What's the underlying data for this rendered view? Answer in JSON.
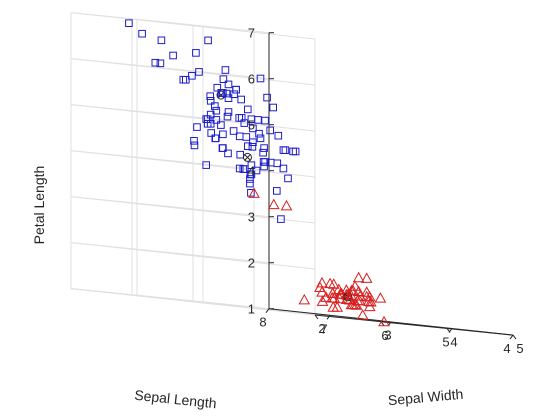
{
  "chart_data": {
    "type": "scatter3d",
    "xlabel": "Sepal Length",
    "ylabel": "Sepal Width",
    "zlabel": "Petal Length",
    "xlim": [
      4,
      8
    ],
    "ylim": [
      2,
      5
    ],
    "zlim": [
      1,
      7
    ],
    "xticks": [
      "4",
      "5",
      "6",
      "7",
      "8"
    ],
    "yticks": [
      "2",
      "3",
      "4",
      "5"
    ],
    "zticks": [
      "1",
      "2",
      "3",
      "4",
      "5",
      "6",
      "7"
    ],
    "grid": true,
    "colors": {
      "setosa": "#d81e1e",
      "versicolor_virginica": "#1e1ec8",
      "markers": "#262626",
      "grid": "#e0e0e0",
      "axis": "#262626"
    },
    "series": [
      {
        "marker": "triangle",
        "color": "#d81e1e",
        "points": [
          [
            5.1,
            3.5,
            1.4
          ],
          [
            4.9,
            3.0,
            1.4
          ],
          [
            4.7,
            3.2,
            1.3
          ],
          [
            4.6,
            3.1,
            1.5
          ],
          [
            5.0,
            3.6,
            1.4
          ],
          [
            5.4,
            3.9,
            1.7
          ],
          [
            4.6,
            3.4,
            1.4
          ],
          [
            5.0,
            3.4,
            1.5
          ],
          [
            4.4,
            2.9,
            1.4
          ],
          [
            4.9,
            3.1,
            1.5
          ],
          [
            5.4,
            3.7,
            1.5
          ],
          [
            4.8,
            3.4,
            1.6
          ],
          [
            4.8,
            3.0,
            1.4
          ],
          [
            4.3,
            3.0,
            1.1
          ],
          [
            5.8,
            4.0,
            1.2
          ],
          [
            5.7,
            4.4,
            1.5
          ],
          [
            5.4,
            3.9,
            1.3
          ],
          [
            5.1,
            3.5,
            1.4
          ],
          [
            5.7,
            3.8,
            1.7
          ],
          [
            5.1,
            3.8,
            1.5
          ],
          [
            5.4,
            3.4,
            1.7
          ],
          [
            5.1,
            3.7,
            1.5
          ],
          [
            4.6,
            3.6,
            1.0
          ],
          [
            5.1,
            3.3,
            1.7
          ],
          [
            4.8,
            3.4,
            1.9
          ],
          [
            5.0,
            3.0,
            1.6
          ],
          [
            5.0,
            3.4,
            1.6
          ],
          [
            5.2,
            3.5,
            1.5
          ],
          [
            5.2,
            3.4,
            1.4
          ],
          [
            4.7,
            3.2,
            1.6
          ],
          [
            4.8,
            3.1,
            1.6
          ],
          [
            5.4,
            3.4,
            1.5
          ],
          [
            5.2,
            4.1,
            1.5
          ],
          [
            5.5,
            4.2,
            1.4
          ],
          [
            4.9,
            3.1,
            1.5
          ],
          [
            5.0,
            3.2,
            1.2
          ],
          [
            5.5,
            3.5,
            1.3
          ],
          [
            4.4,
            3.0,
            1.3
          ],
          [
            5.1,
            3.4,
            1.5
          ],
          [
            5.0,
            3.5,
            1.3
          ],
          [
            4.5,
            2.3,
            1.3
          ],
          [
            4.4,
            3.2,
            1.3
          ],
          [
            5.0,
            3.5,
            1.6
          ],
          [
            5.1,
            3.8,
            1.9
          ],
          [
            4.8,
            3.0,
            1.4
          ],
          [
            5.1,
            3.8,
            1.6
          ],
          [
            4.6,
            3.2,
            1.4
          ],
          [
            5.3,
            3.7,
            1.5
          ],
          [
            5.0,
            3.3,
            1.4
          ],
          [
            4.9,
            2.4,
            3.3
          ],
          [
            5.0,
            2.0,
            3.5
          ],
          [
            5.0,
            2.3,
            3.3
          ]
        ]
      },
      {
        "marker": "square",
        "color": "#1e1ec8",
        "points": [
          [
            7.0,
            3.2,
            4.7
          ],
          [
            6.4,
            3.2,
            4.5
          ],
          [
            6.9,
            3.1,
            4.9
          ],
          [
            5.5,
            2.3,
            4.0
          ],
          [
            6.5,
            2.8,
            4.6
          ],
          [
            5.7,
            2.8,
            4.5
          ],
          [
            6.3,
            3.3,
            4.7
          ],
          [
            6.6,
            2.9,
            4.6
          ],
          [
            5.2,
            2.7,
            3.9
          ],
          [
            5.9,
            3.0,
            4.2
          ],
          [
            6.0,
            2.2,
            4.0
          ],
          [
            6.1,
            2.9,
            4.7
          ],
          [
            5.6,
            2.9,
            3.6
          ],
          [
            6.7,
            3.1,
            4.4
          ],
          [
            5.6,
            3.0,
            4.5
          ],
          [
            5.8,
            2.7,
            4.1
          ],
          [
            6.2,
            2.2,
            4.5
          ],
          [
            5.6,
            2.5,
            3.9
          ],
          [
            5.9,
            3.2,
            4.8
          ],
          [
            6.1,
            2.8,
            4.0
          ],
          [
            6.3,
            2.5,
            4.9
          ],
          [
            6.1,
            2.8,
            4.7
          ],
          [
            6.4,
            2.9,
            4.3
          ],
          [
            6.6,
            3.0,
            4.4
          ],
          [
            6.8,
            2.8,
            4.8
          ],
          [
            6.7,
            3.0,
            5.0
          ],
          [
            6.0,
            2.9,
            4.5
          ],
          [
            5.7,
            2.6,
            3.5
          ],
          [
            5.5,
            2.4,
            3.8
          ],
          [
            5.5,
            2.4,
            3.7
          ],
          [
            5.8,
            2.7,
            3.9
          ],
          [
            6.0,
            2.7,
            5.1
          ],
          [
            5.4,
            3.0,
            4.5
          ],
          [
            6.0,
            3.4,
            4.5
          ],
          [
            6.7,
            3.1,
            4.7
          ],
          [
            6.3,
            2.3,
            4.4
          ],
          [
            5.6,
            3.0,
            4.1
          ],
          [
            5.5,
            2.5,
            4.0
          ],
          [
            5.5,
            2.6,
            4.4
          ],
          [
            6.1,
            3.0,
            4.6
          ],
          [
            5.8,
            2.6,
            4.0
          ],
          [
            5.6,
            2.7,
            4.2
          ],
          [
            5.7,
            3.0,
            4.2
          ],
          [
            5.7,
            2.9,
            4.2
          ],
          [
            6.2,
            2.9,
            4.3
          ],
          [
            5.1,
            2.5,
            3.0
          ],
          [
            5.7,
            2.8,
            4.1
          ],
          [
            6.3,
            3.3,
            6.0
          ],
          [
            5.8,
            2.7,
            5.1
          ],
          [
            7.1,
            3.0,
            5.9
          ],
          [
            6.3,
            2.9,
            5.6
          ],
          [
            6.5,
            3.0,
            5.8
          ],
          [
            7.6,
            3.0,
            6.6
          ],
          [
            4.9,
            2.5,
            4.5
          ],
          [
            7.3,
            2.9,
            6.3
          ],
          [
            6.7,
            2.5,
            5.8
          ],
          [
            7.2,
            3.6,
            6.1
          ],
          [
            6.5,
            3.2,
            5.1
          ],
          [
            6.4,
            2.7,
            5.3
          ],
          [
            6.8,
            3.0,
            5.5
          ],
          [
            5.7,
            2.5,
            5.0
          ],
          [
            5.8,
            2.8,
            5.1
          ],
          [
            6.4,
            3.2,
            5.3
          ],
          [
            6.5,
            3.0,
            5.5
          ],
          [
            7.7,
            3.8,
            6.7
          ],
          [
            7.7,
            2.6,
            6.9
          ],
          [
            6.0,
            2.2,
            5.0
          ],
          [
            6.9,
            3.2,
            5.7
          ],
          [
            5.6,
            2.8,
            4.9
          ],
          [
            7.7,
            2.8,
            6.7
          ],
          [
            6.3,
            2.7,
            4.9
          ],
          [
            6.7,
            3.3,
            5.7
          ],
          [
            7.2,
            3.2,
            6.0
          ],
          [
            6.2,
            2.8,
            4.8
          ],
          [
            6.1,
            3.0,
            4.9
          ],
          [
            6.4,
            2.8,
            5.6
          ],
          [
            7.2,
            3.0,
            5.8
          ],
          [
            7.4,
            2.8,
            6.1
          ],
          [
            7.9,
            3.8,
            6.4
          ],
          [
            6.4,
            2.8,
            5.6
          ],
          [
            6.3,
            2.8,
            5.1
          ],
          [
            6.1,
            2.6,
            5.6
          ],
          [
            7.7,
            3.0,
            6.1
          ],
          [
            6.3,
            3.4,
            5.6
          ],
          [
            6.4,
            3.1,
            5.5
          ],
          [
            6.0,
            3.0,
            4.8
          ],
          [
            6.9,
            3.1,
            5.4
          ],
          [
            6.7,
            3.1,
            5.6
          ],
          [
            6.9,
            3.1,
            5.1
          ],
          [
            6.8,
            3.2,
            5.9
          ],
          [
            6.7,
            3.3,
            5.7
          ],
          [
            6.7,
            3.0,
            5.2
          ],
          [
            6.3,
            2.5,
            5.0
          ],
          [
            6.5,
            3.0,
            5.2
          ],
          [
            6.2,
            3.4,
            5.4
          ],
          [
            5.9,
            3.0,
            5.1
          ]
        ]
      },
      {
        "marker": "circle-x",
        "color": "#262626",
        "points": [
          [
            5.0,
            3.42,
            1.46
          ],
          [
            5.94,
            2.77,
            4.26
          ],
          [
            6.59,
            2.97,
            5.55
          ]
        ]
      }
    ]
  }
}
